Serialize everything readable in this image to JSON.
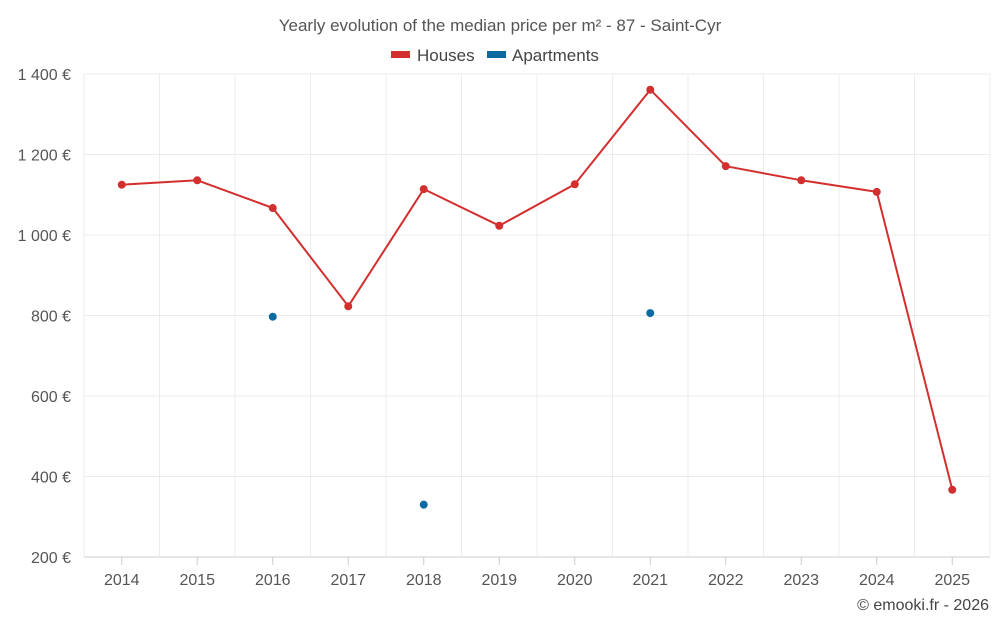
{
  "chart_data": {
    "type": "line",
    "title": "Yearly evolution of the median price per m² - 87 - Saint-Cyr",
    "categories": [
      "2014",
      "2015",
      "2016",
      "2017",
      "2018",
      "2019",
      "2020",
      "2021",
      "2022",
      "2023",
      "2024",
      "2025"
    ],
    "ylim": [
      200,
      1400
    ],
    "yticks": [
      200,
      400,
      600,
      800,
      1000,
      1200,
      1400
    ],
    "ytick_labels": [
      "200 €",
      "400 €",
      "600 €",
      "800 €",
      "1 000 €",
      "1 200 €",
      "1 400 €"
    ],
    "xlabel": "",
    "ylabel": "",
    "grid": true,
    "legend_position": "top-center",
    "series": [
      {
        "name": "Houses",
        "color": "#d32f2f",
        "values": [
          1125,
          1136,
          1067,
          823,
          1114,
          1023,
          1126,
          1361,
          1171,
          1136,
          1107,
          367
        ]
      },
      {
        "name": "Apartments",
        "color": "#0a6aa1",
        "values": [
          null,
          null,
          797,
          null,
          330,
          null,
          null,
          806,
          null,
          null,
          null,
          null
        ]
      }
    ]
  },
  "credit": "© emooki.fr - 2026"
}
